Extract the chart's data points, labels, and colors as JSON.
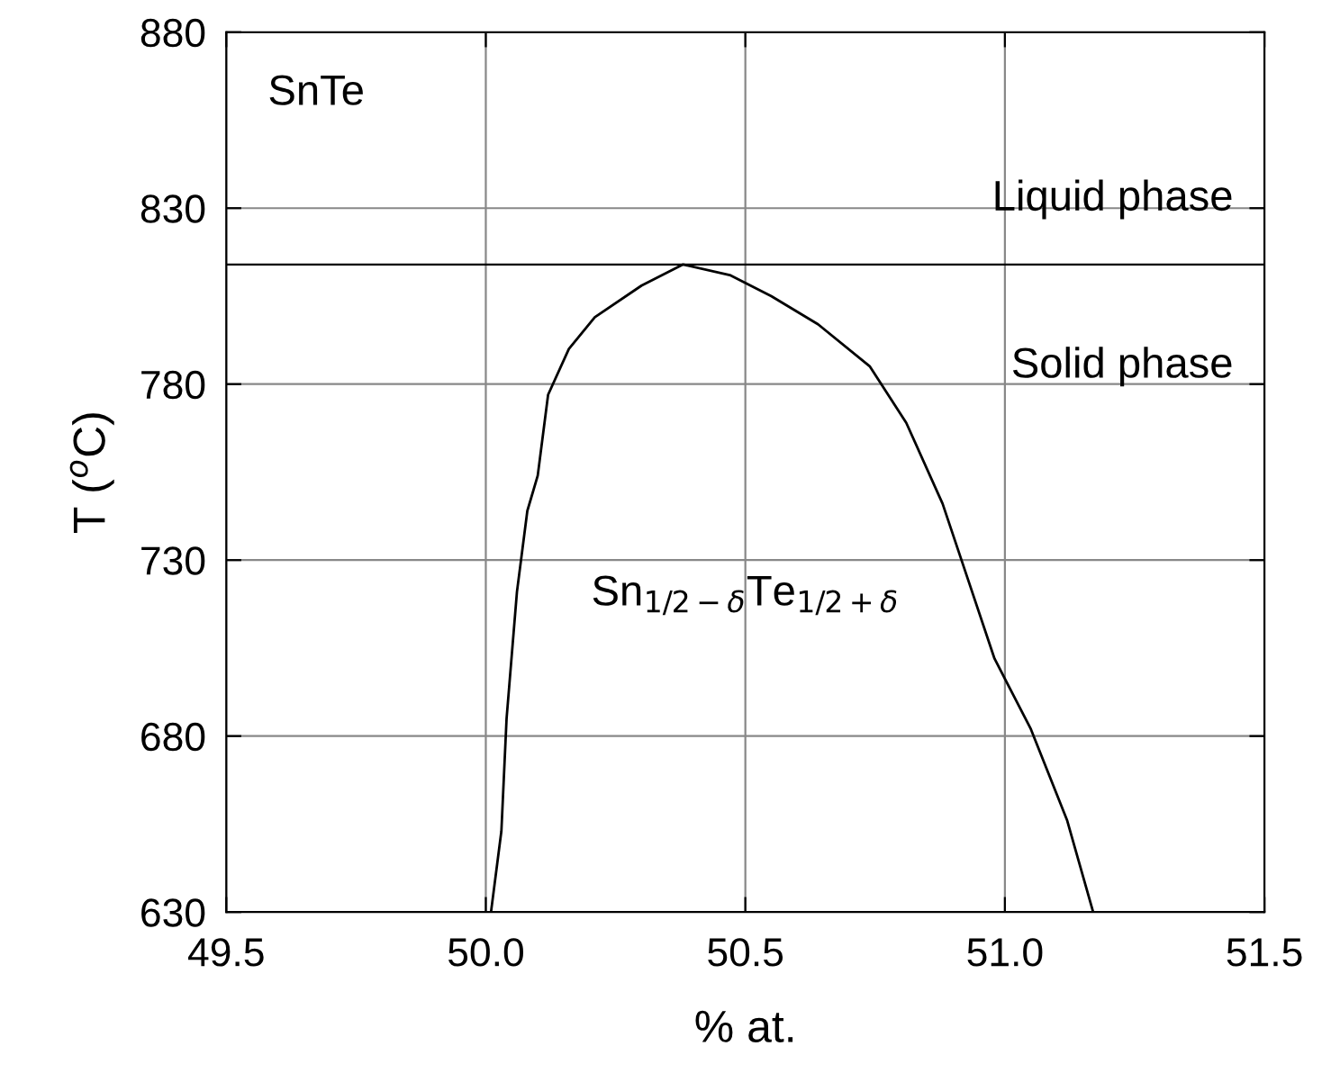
{
  "chart_data": {
    "type": "line",
    "xlabel": "% at.",
    "ylabel": "T ($^{o}$C)",
    "x": [
      50.01,
      50.03,
      50.04,
      50.06,
      50.08,
      50.1,
      50.12,
      50.16,
      50.21,
      50.3,
      50.38,
      50.47,
      50.55,
      50.64,
      50.74,
      50.81,
      50.88,
      50.93,
      50.98,
      51.05,
      51.12,
      51.17
    ],
    "series": [
      {
        "color": "#000000",
        "values": [
          630,
          653,
          685,
          721,
          744,
          754,
          777,
          790,
          799,
          808,
          814,
          811,
          805,
          797,
          785,
          769,
          746,
          724,
          702,
          682,
          656,
          630
        ]
      }
    ],
    "xlim": [
      49.5,
      51.5
    ],
    "xticks": [
      {
        "value": 49.5,
        "label": "49.5"
      },
      {
        "value": 50.0,
        "label": "50.0"
      },
      {
        "value": 50.5,
        "label": "50.5"
      },
      {
        "value": 51.0,
        "label": "51.0"
      },
      {
        "value": 51.5,
        "label": "51.5"
      }
    ],
    "ylim": [
      630,
      880
    ],
    "yticks": [
      630,
      680,
      730,
      780,
      830,
      880
    ],
    "grid": true,
    "marker": "none",
    "line_style": "solid",
    "ref_lines": [
      {
        "axis": "y",
        "value": 814,
        "color": "#000000"
      }
    ],
    "annotations": [
      "SnTe",
      "Liquid phase",
      "Solid phase",
      "Sn$_{1/2−δ}$Te$_{1/2+δ}$"
    ]
  }
}
